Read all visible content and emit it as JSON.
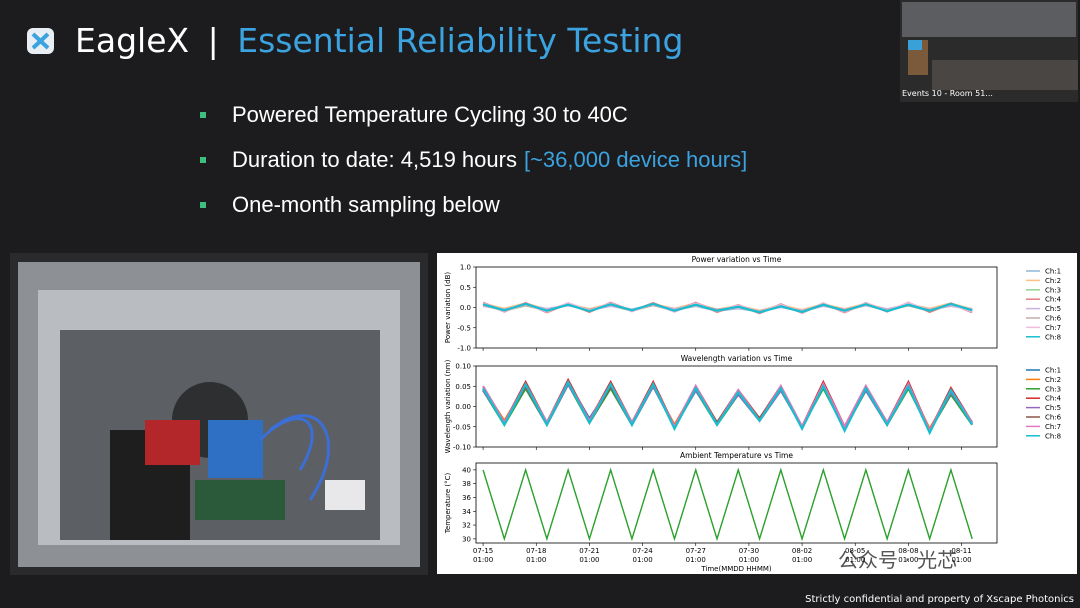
{
  "header": {
    "brand": "EagleX",
    "separator": "|",
    "title": "Essential Reliability Testing"
  },
  "bullets": [
    {
      "text": "Powered Temperature Cycling 30 to 40C"
    },
    {
      "text": "Duration to date: 4,519 hours",
      "highlight": "[~36,000 device hours]"
    },
    {
      "text": "One-month sampling below"
    }
  ],
  "video": {
    "label": "Events 10 - Room 51..."
  },
  "footer": "Strictly confidential and property of Xscape Photonics",
  "watermark": "公众号 · 光芯",
  "chart": {
    "xlabel": "Time(MMDD HHMM)",
    "xlim": [
      -0.4,
      29
    ],
    "xticks": [
      {
        "value": 0,
        "label": "07-15",
        "time": "01:00"
      },
      {
        "value": 3,
        "label": "07-18",
        "time": "01:00"
      },
      {
        "value": 6,
        "label": "07-21",
        "time": "01:00"
      },
      {
        "value": 9,
        "label": "07-24",
        "time": "01:00"
      },
      {
        "value": 12,
        "label": "07-27",
        "time": "01:00"
      },
      {
        "value": 15,
        "label": "07-30",
        "time": "01:00"
      },
      {
        "value": 18,
        "label": "08-02",
        "time": "01:00"
      },
      {
        "value": 21,
        "label": "08-05",
        "time": "01:00"
      },
      {
        "value": 24,
        "label": "08-08",
        "time": "01:00"
      },
      {
        "value": 27,
        "label": "08-11",
        "time": "01:00"
      }
    ],
    "x": [
      0,
      1.2,
      2.4,
      3.6,
      4.8,
      6,
      7.2,
      8.4,
      9.6,
      10.8,
      12,
      13.2,
      14.4,
      15.6,
      16.8,
      18,
      19.2,
      20.4,
      21.6,
      22.8,
      24,
      25.2,
      26.4,
      27.6
    ],
    "panels": [
      {
        "title": "Power variation vs Time",
        "ylabel": "Power variation (dB)",
        "ylim": [
          -1,
          1
        ],
        "yticks": [
          {
            "value": -1,
            "label": "-1.0"
          },
          {
            "value": -0.5,
            "label": "-0.5"
          },
          {
            "value": 0,
            "label": "0.0"
          },
          {
            "value": 0.5,
            "label": "0.5"
          },
          {
            "value": 1,
            "label": "1.0"
          }
        ],
        "series": [
          {
            "name": "Ch:1",
            "color": "#8fb8d9",
            "values": [
              0.05,
              -0.06,
              0.08,
              -0.04,
              0.06,
              -0.07,
              0.05,
              -0.05,
              0.07,
              -0.06,
              0.04,
              -0.08,
              -0.02,
              -0.1,
              0.03,
              -0.09,
              0.06,
              -0.07,
              0.06,
              -0.05,
              0.05,
              -0.08,
              0.07,
              -0.04
            ]
          },
          {
            "name": "Ch:2",
            "color": "#ffbf86",
            "values": [
              0.09,
              -0.03,
              0.1,
              -0.05,
              0.08,
              -0.04,
              0.09,
              -0.06,
              0.08,
              -0.03,
              0.1,
              -0.05,
              0.04,
              -0.08,
              0.05,
              -0.06,
              0.08,
              -0.04,
              0.09,
              -0.05,
              0.08,
              -0.03,
              0.1,
              -0.05
            ]
          },
          {
            "name": "Ch:3",
            "color": "#95cf95",
            "values": [
              0.06,
              -0.08,
              0.05,
              -0.07,
              0.07,
              -0.06,
              0.05,
              -0.08,
              0.06,
              -0.07,
              0.05,
              -0.06,
              0,
              -0.11,
              0.02,
              -0.1,
              0.05,
              -0.08,
              0.06,
              -0.07,
              0.05,
              -0.08,
              0.06,
              -0.07
            ]
          },
          {
            "name": "Ch:4",
            "color": "#e37e7f",
            "values": [
              0.12,
              -0.1,
              0.11,
              -0.12,
              0.1,
              -0.11,
              0.12,
              -0.09,
              0.11,
              -0.1,
              0.12,
              -0.11,
              0.06,
              -0.14,
              0.08,
              -0.13,
              0.1,
              -0.12,
              0.11,
              -0.1,
              0.12,
              -0.11,
              0.1,
              -0.12
            ]
          },
          {
            "name": "Ch:5",
            "color": "#c9b3de",
            "values": [
              0.04,
              -0.05,
              0.06,
              -0.04,
              0.05,
              -0.06,
              0.04,
              -0.05,
              0.06,
              -0.04,
              0.05,
              -0.05,
              -0.01,
              -0.09,
              0.01,
              -0.08,
              0.04,
              -0.05,
              0.05,
              -0.04,
              0.06,
              -0.05,
              0.04,
              -0.05
            ]
          },
          {
            "name": "Ch:6",
            "color": "#c5aaa5",
            "values": [
              0.07,
              -0.07,
              0.06,
              -0.08,
              0.07,
              -0.06,
              0.08,
              -0.07,
              0.06,
              -0.08,
              0.07,
              -0.06,
              0.02,
              -0.1,
              0.03,
              -0.1,
              0.06,
              -0.07,
              0.07,
              -0.08,
              0.06,
              -0.07,
              0.08,
              -0.06
            ]
          },
          {
            "name": "Ch:7",
            "color": "#f1bbe0",
            "values": [
              0.1,
              -0.09,
              0.09,
              -0.1,
              0.11,
              -0.08,
              0.1,
              -0.09,
              0.09,
              -0.1,
              0.1,
              -0.09,
              0.05,
              -0.12,
              0.06,
              -0.12,
              0.09,
              -0.1,
              0.1,
              -0.09,
              0.11,
              -0.08,
              0.09,
              -0.1
            ]
          },
          {
            "name": "Ch:8",
            "color": "#17becf",
            "values": [
              0.08,
              -0.07,
              0.09,
              -0.08,
              0.07,
              -0.09,
              0.08,
              -0.07,
              0.09,
              -0.08,
              0.07,
              -0.08,
              0.02,
              -0.12,
              0.03,
              -0.11,
              0.07,
              -0.08,
              0.08,
              -0.09,
              0.07,
              -0.08,
              0.09,
              -0.07
            ]
          }
        ]
      },
      {
        "title": "Wavelength variation vs Time",
        "ylabel": "Wavelength variation (nm)",
        "ylim": [
          -0.1,
          0.1
        ],
        "yticks": [
          {
            "value": -0.1,
            "label": "-0.10"
          },
          {
            "value": -0.05,
            "label": "-0.05"
          },
          {
            "value": 0,
            "label": "0.00"
          },
          {
            "value": 0.05,
            "label": "0.05"
          },
          {
            "value": 0.1,
            "label": "0.10"
          }
        ],
        "series": [
          {
            "name": "Ch:1",
            "color": "#1f77b4",
            "values": [
              0.04,
              -0.04,
              0.05,
              -0.04,
              0.06,
              -0.03,
              0.05,
              -0.04,
              0.05,
              -0.05,
              0.04,
              -0.04,
              0.03,
              -0.03,
              0.04,
              -0.05,
              0.05,
              -0.05,
              0.04,
              -0.04,
              0.05,
              -0.06,
              0.03,
              -0.04
            ]
          },
          {
            "name": "Ch:2",
            "color": "#ff7f0e",
            "values": [
              0.045,
              -0.035,
              0.05,
              -0.04,
              0.055,
              -0.035,
              0.05,
              -0.04,
              0.05,
              -0.045,
              0.045,
              -0.04,
              0.035,
              -0.03,
              0.045,
              -0.05,
              0.05,
              -0.05,
              0.045,
              -0.04,
              0.05,
              -0.055,
              0.035,
              -0.04
            ]
          },
          {
            "name": "Ch:3",
            "color": "#2ca02c",
            "values": [
              0.04,
              -0.045,
              0.045,
              -0.045,
              0.055,
              -0.04,
              0.045,
              -0.045,
              0.05,
              -0.05,
              0.04,
              -0.045,
              0.03,
              -0.035,
              0.04,
              -0.05,
              0.045,
              -0.055,
              0.04,
              -0.045,
              0.045,
              -0.06,
              0.03,
              -0.045
            ]
          },
          {
            "name": "Ch:4",
            "color": "#d62728",
            "values": [
              0.05,
              -0.04,
              0.06,
              -0.04,
              0.065,
              -0.035,
              0.06,
              -0.04,
              0.06,
              -0.05,
              0.05,
              -0.04,
              0.04,
              -0.03,
              0.05,
              -0.05,
              0.06,
              -0.05,
              0.05,
              -0.04,
              0.06,
              -0.06,
              0.045,
              -0.04
            ]
          },
          {
            "name": "Ch:5",
            "color": "#9467bd",
            "values": [
              0.04,
              -0.04,
              0.05,
              -0.045,
              0.055,
              -0.035,
              0.05,
              -0.045,
              0.05,
              -0.05,
              0.04,
              -0.04,
              0.03,
              -0.035,
              0.04,
              -0.05,
              0.05,
              -0.05,
              0.04,
              -0.045,
              0.05,
              -0.06,
              0.035,
              -0.04
            ]
          },
          {
            "name": "Ch:6",
            "color": "#8c564b",
            "values": [
              0.045,
              -0.04,
              0.05,
              -0.04,
              0.06,
              -0.04,
              0.05,
              -0.04,
              0.055,
              -0.05,
              0.045,
              -0.04,
              0.035,
              -0.03,
              0.045,
              -0.05,
              0.05,
              -0.055,
              0.045,
              -0.04,
              0.05,
              -0.06,
              0.04,
              -0.045
            ]
          },
          {
            "name": "Ch:7",
            "color": "#e377c2",
            "values": [
              0.05,
              -0.04,
              0.055,
              -0.04,
              0.06,
              -0.035,
              0.055,
              -0.04,
              0.055,
              -0.05,
              0.05,
              -0.045,
              0.04,
              -0.035,
              0.05,
              -0.05,
              0.055,
              -0.05,
              0.05,
              -0.04,
              0.055,
              -0.06,
              0.04,
              -0.04
            ]
          },
          {
            "name": "Ch:8",
            "color": "#17becf",
            "values": [
              0.045,
              -0.045,
              0.055,
              -0.045,
              0.06,
              -0.04,
              0.055,
              -0.045,
              0.055,
              -0.055,
              0.045,
              -0.045,
              0.035,
              -0.035,
              0.045,
              -0.055,
              0.05,
              -0.06,
              0.045,
              -0.045,
              0.05,
              -0.065,
              0.04,
              -0.045
            ]
          }
        ]
      },
      {
        "title": "Ambient Temperature vs Time",
        "ylabel": "Temperature (°C)",
        "ylim": [
          29.4,
          41
        ],
        "yticks": [
          30,
          32,
          34,
          36,
          38,
          40
        ],
        "series": [
          {
            "color": "#2ca02c",
            "values": [
              40,
              30,
              40,
              30,
              40,
              30,
              40,
              30,
              40,
              30,
              40,
              30,
              40,
              30,
              40,
              30,
              40,
              30,
              40,
              30,
              40,
              30,
              40,
              30
            ]
          }
        ]
      }
    ]
  }
}
